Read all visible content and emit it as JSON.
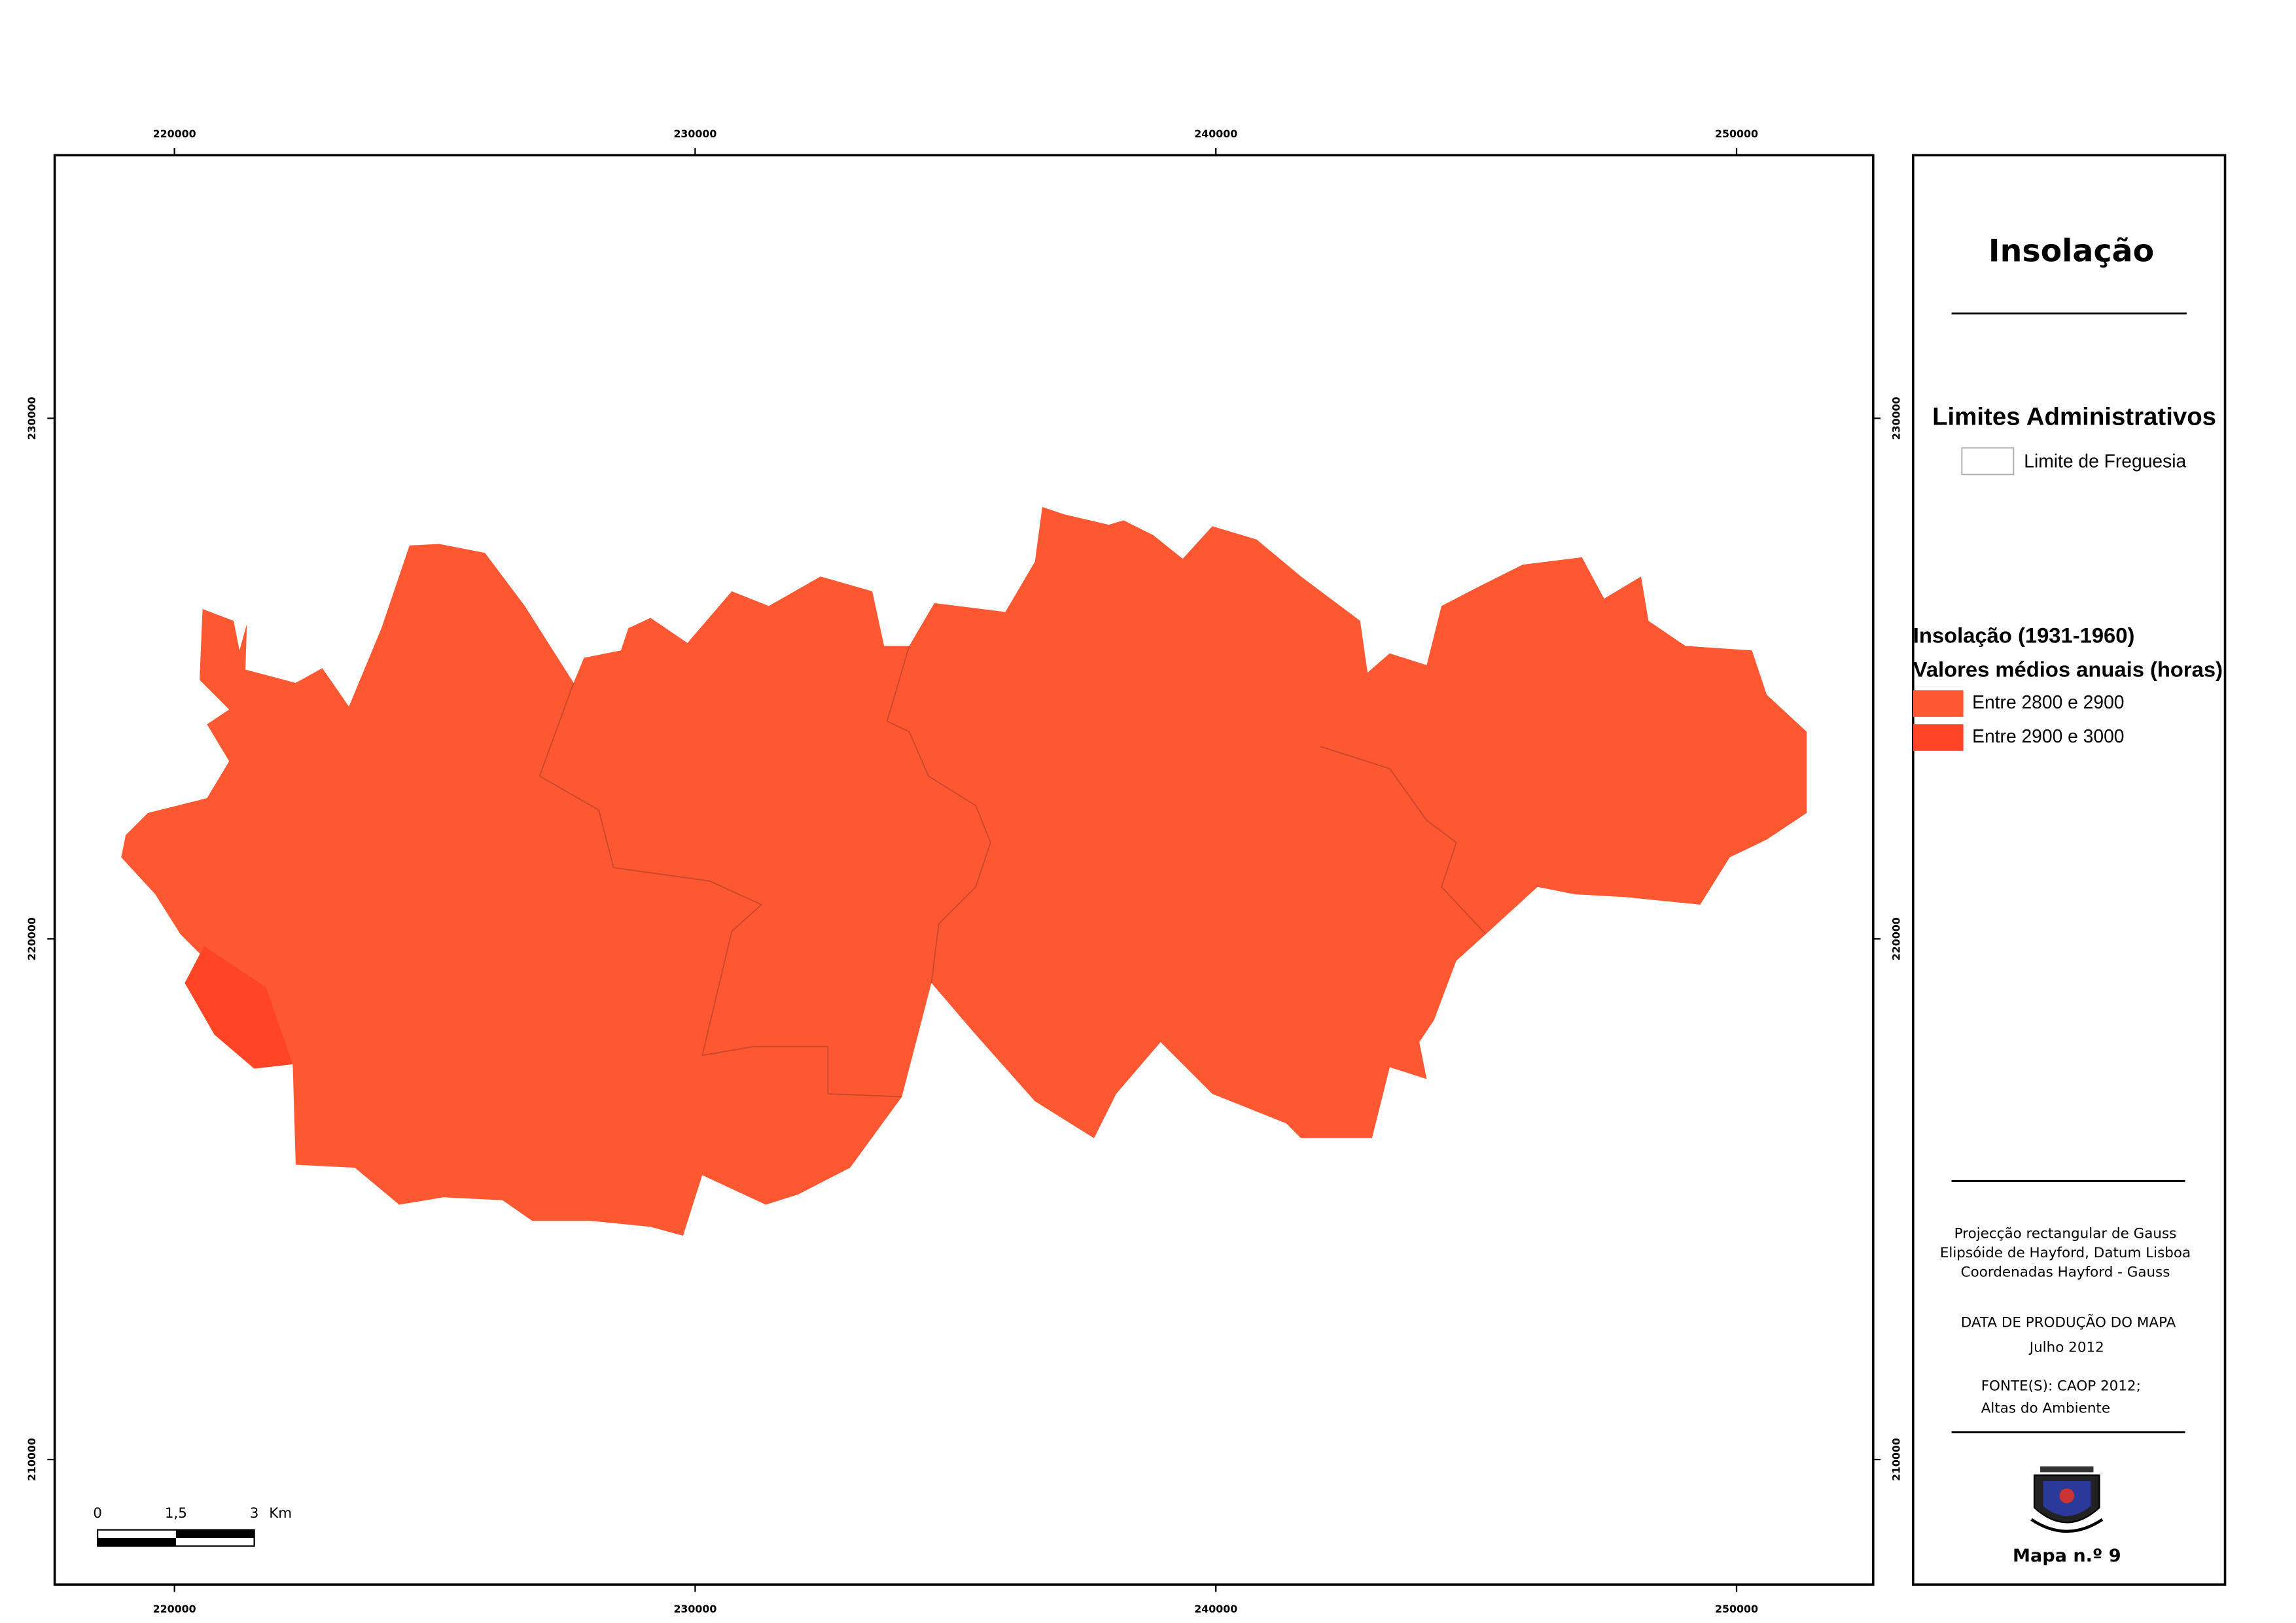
{
  "title": "Insolação",
  "frame": {
    "x_ticks": [
      220000,
      230000,
      240000,
      250000
    ],
    "y_ticks": [
      230000,
      220000,
      210000
    ]
  },
  "legend": {
    "admin_title": "Limites Administrativos",
    "admin_item": "Limite de Freguesia",
    "theme_title": "Insolação (1931-1960)",
    "theme_subtitle": "Valores médios anuais (horas)",
    "classes": [
      {
        "label": "Entre 2800 e 2900",
        "color": "#fe5833"
      },
      {
        "label": "Entre 2900 e 3000",
        "color": "#ff4525"
      }
    ]
  },
  "scale_bar": {
    "ticks": [
      0,
      {
        "value": 1.5,
        "label": "1,5"
      },
      3
    ],
    "unit": "Km"
  },
  "notes": {
    "projection": [
      "Projecção rectangular de Gauss",
      "Elipsóide de Hayford, Datum Lisboa",
      "Coordenadas Hayford - Gauss"
    ],
    "production_heading": "DATA DE PRODUÇÃO DO MAPA",
    "production_date": "Julho 2012",
    "sources": [
      "FONTE(S): CAOP 2012;",
      "Altas do Ambiente"
    ]
  },
  "map_number": "Mapa n.º 9"
}
